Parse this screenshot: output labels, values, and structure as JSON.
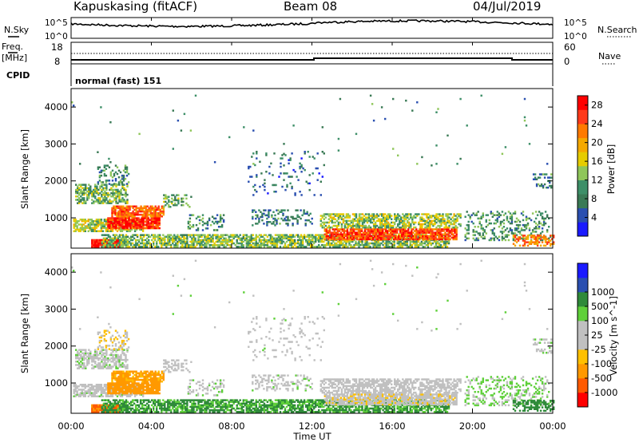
{
  "header": {
    "station": "Kapuskasing (fitACF)",
    "beam": "Beam 08",
    "date": "04/Jul/2019"
  },
  "top_panels": {
    "nsky_label": "N.Sky",
    "nsearch_label": "N.Search",
    "noise_axis_top": "10^5",
    "noise_axis_bottom": "10^0",
    "freq_label_1": "Freq.",
    "freq_label_2": "[MHz]",
    "freq_ticks": [
      "18",
      "8"
    ],
    "nave_ticks": [
      "60",
      "0"
    ],
    "nave_label": "Nave",
    "cpid_label": "CPID",
    "cpid_value": "normal (fast) 151"
  },
  "colors": {
    "power_scale": [
      "#1a1aff",
      "#2a4fb0",
      "#3a7a55",
      "#3d8f68",
      "#8fc65a",
      "#e6cc00",
      "#f5a900",
      "#ff7a00",
      "#ff3a1a",
      "#ff0000"
    ],
    "velocity_scale": [
      "#ff0000",
      "#ff5a00",
      "#ff9900",
      "#ffc000",
      "#c0c0c0",
      "#c0c0c0",
      "#5fd03a",
      "#2f8a3a",
      "#2a4fb0",
      "#1a1aff"
    ]
  },
  "chart_data": [
    {
      "type": "heatmap",
      "panel": "power",
      "ylabel": "Slant Range [km]",
      "xlabel": "",
      "x_ticks": [
        "00:00",
        "04:00",
        "08:00",
        "12:00",
        "16:00",
        "20:00",
        "00:00"
      ],
      "y_ticks": [
        "1000",
        "2000",
        "3000",
        "4000"
      ],
      "xlim_hours": [
        0,
        24
      ],
      "ylim_km": [
        180,
        4500
      ],
      "colorbar_label": "Power [dB]",
      "colorbar_ticks": [
        "4",
        "8",
        "12",
        "16",
        "20",
        "24",
        "28"
      ],
      "colorbar_range": [
        0,
        30
      ]
    },
    {
      "type": "heatmap",
      "panel": "velocity",
      "ylabel": "Slant Range [km]",
      "xlabel": "Time UT",
      "x_ticks": [
        "00:00",
        "04:00",
        "08:00",
        "12:00",
        "16:00",
        "20:00",
        "00:00"
      ],
      "y_ticks": [
        "1000",
        "2000",
        "3000",
        "4000"
      ],
      "xlim_hours": [
        0,
        24
      ],
      "ylim_km": [
        180,
        4500
      ],
      "colorbar_label": "Velocity [m s^-1]",
      "colorbar_ticks": [
        "-1000",
        "-500",
        "-100",
        "-25",
        "25",
        "100",
        "500",
        "1000"
      ]
    }
  ]
}
